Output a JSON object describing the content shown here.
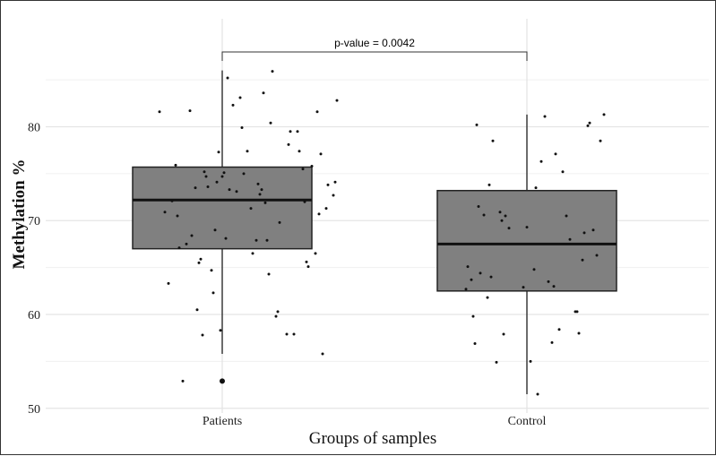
{
  "chart_data": {
    "type": "box",
    "xlabel": "Groups of samples",
    "ylabel": "Methylation %",
    "categories": [
      "Patients",
      "Control"
    ],
    "ylim": [
      49.5,
      91.5
    ],
    "yticks": [
      50,
      60,
      70,
      80
    ],
    "grid": true,
    "annotation": "p-value = 0.0042",
    "box_color": "#808080",
    "boxes": [
      {
        "group": "Patients",
        "min": 55.8,
        "q1": 67.0,
        "median": 72.2,
        "q3": 75.7,
        "max": 86.0,
        "outliers": [
          52.9
        ]
      },
      {
        "group": "Control",
        "min": 51.5,
        "q1": 62.5,
        "median": 67.5,
        "q3": 73.2,
        "max": 81.3,
        "outliers": []
      }
    ],
    "points": [
      {
        "group": "Patients",
        "points": [
          [
            -0.35,
            81.6
          ],
          [
            -0.32,
            70.9
          ],
          [
            -0.3,
            63.3
          ],
          [
            -0.28,
            72.1
          ],
          [
            -0.26,
            75.9
          ],
          [
            -0.25,
            70.5
          ],
          [
            -0.24,
            67.1
          ],
          [
            -0.22,
            52.9
          ],
          [
            -0.2,
            67.5
          ],
          [
            -0.18,
            81.7
          ],
          [
            -0.17,
            68.4
          ],
          [
            -0.15,
            73.5
          ],
          [
            -0.14,
            60.5
          ],
          [
            -0.13,
            65.5
          ],
          [
            -0.12,
            65.9
          ],
          [
            -0.11,
            57.8
          ],
          [
            -0.1,
            75.2
          ],
          [
            -0.09,
            74.7
          ],
          [
            -0.08,
            73.6
          ],
          [
            -0.06,
            64.7
          ],
          [
            -0.05,
            62.3
          ],
          [
            -0.04,
            69.0
          ],
          [
            -0.03,
            74.1
          ],
          [
            -0.02,
            77.3
          ],
          [
            -0.01,
            58.3
          ],
          [
            0.0,
            74.7
          ],
          [
            0.01,
            75.1
          ],
          [
            0.02,
            68.1
          ],
          [
            0.03,
            85.2
          ],
          [
            0.04,
            73.3
          ],
          [
            0.06,
            82.3
          ],
          [
            0.08,
            73.1
          ],
          [
            0.1,
            83.1
          ],
          [
            0.11,
            79.9
          ],
          [
            0.12,
            75.0
          ],
          [
            0.14,
            77.4
          ],
          [
            0.16,
            71.3
          ],
          [
            0.17,
            66.5
          ],
          [
            0.19,
            67.9
          ],
          [
            0.2,
            73.9
          ],
          [
            0.21,
            72.8
          ],
          [
            0.22,
            73.3
          ],
          [
            0.23,
            83.6
          ],
          [
            0.24,
            71.9
          ],
          [
            0.25,
            67.9
          ],
          [
            0.26,
            64.3
          ],
          [
            0.27,
            80.4
          ],
          [
            0.28,
            85.9
          ],
          [
            0.3,
            59.8
          ],
          [
            0.31,
            60.3
          ],
          [
            0.32,
            69.8
          ],
          [
            0.36,
            57.9
          ],
          [
            0.37,
            78.1
          ],
          [
            0.38,
            79.5
          ],
          [
            0.4,
            57.9
          ],
          [
            0.42,
            79.5
          ],
          [
            0.43,
            77.4
          ],
          [
            0.45,
            75.5
          ],
          [
            0.46,
            72.0
          ],
          [
            0.47,
            65.6
          ],
          [
            0.48,
            65.1
          ],
          [
            0.5,
            75.8
          ],
          [
            0.52,
            66.5
          ],
          [
            0.53,
            81.6
          ],
          [
            0.54,
            70.7
          ],
          [
            0.55,
            77.1
          ],
          [
            0.56,
            55.8
          ],
          [
            0.58,
            71.3
          ],
          [
            0.59,
            73.8
          ],
          [
            0.62,
            72.7
          ],
          [
            0.63,
            74.1
          ],
          [
            0.64,
            82.8
          ]
        ]
      },
      {
        "group": "Control",
        "points": [
          [
            -0.34,
            62.7
          ],
          [
            -0.33,
            65.1
          ],
          [
            -0.31,
            63.7
          ],
          [
            -0.3,
            59.8
          ],
          [
            -0.29,
            56.9
          ],
          [
            -0.28,
            80.2
          ],
          [
            -0.27,
            71.5
          ],
          [
            -0.26,
            64.4
          ],
          [
            -0.24,
            70.6
          ],
          [
            -0.22,
            61.8
          ],
          [
            -0.21,
            73.8
          ],
          [
            -0.2,
            64.0
          ],
          [
            -0.19,
            78.5
          ],
          [
            -0.17,
            54.9
          ],
          [
            -0.15,
            70.9
          ],
          [
            -0.14,
            70.0
          ],
          [
            -0.13,
            57.9
          ],
          [
            -0.12,
            70.5
          ],
          [
            -0.1,
            69.2
          ],
          [
            -0.02,
            62.9
          ],
          [
            0.0,
            69.3
          ],
          [
            0.02,
            55.0
          ],
          [
            0.04,
            64.8
          ],
          [
            0.05,
            73.5
          ],
          [
            0.06,
            51.5
          ],
          [
            0.08,
            76.3
          ],
          [
            0.1,
            81.1
          ],
          [
            0.12,
            63.5
          ],
          [
            0.14,
            57.0
          ],
          [
            0.15,
            63.0
          ],
          [
            0.16,
            77.1
          ],
          [
            0.18,
            58.4
          ],
          [
            0.2,
            75.2
          ],
          [
            0.22,
            70.5
          ],
          [
            0.24,
            68.0
          ],
          [
            0.27,
            60.3
          ],
          [
            0.28,
            60.3
          ],
          [
            0.29,
            58.0
          ],
          [
            0.31,
            65.8
          ],
          [
            0.32,
            68.7
          ],
          [
            0.34,
            80.1
          ],
          [
            0.35,
            80.4
          ],
          [
            0.37,
            69.0
          ],
          [
            0.39,
            66.3
          ],
          [
            0.41,
            78.5
          ],
          [
            0.43,
            81.3
          ]
        ]
      }
    ]
  }
}
